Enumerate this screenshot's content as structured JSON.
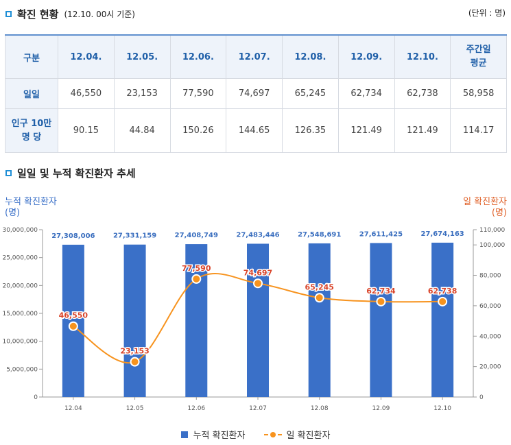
{
  "section1": {
    "title": "확진 현황",
    "subtitle": "(12.10. 00시 기준)",
    "unit_note": "(단위 : 명)"
  },
  "table": {
    "headers": [
      "구분",
      "12.04.",
      "12.05.",
      "12.06.",
      "12.07.",
      "12.08.",
      "12.09.",
      "12.10.",
      "주간일\n평균"
    ],
    "rows": [
      {
        "label": "일일",
        "values": [
          "46,550",
          "23,153",
          "77,590",
          "74,697",
          "65,245",
          "62,734",
          "62,738",
          "58,958"
        ]
      },
      {
        "label": "인구 10만\n명 당",
        "values": [
          "90.15",
          "44.84",
          "150.26",
          "144.65",
          "126.35",
          "121.49",
          "121.49",
          "114.17"
        ]
      }
    ]
  },
  "section2": {
    "title": "일일 및 누적 확진환자 추세"
  },
  "colors": {
    "bar": "#3a70c8",
    "line": "#f7931e",
    "left_axis_title": "#3a70c8",
    "right_axis_title": "#e0622a",
    "bar_label": "#3b6fbf",
    "line_label": "#d9452b"
  },
  "chart_data": {
    "type": "bar",
    "categories": [
      "12.04",
      "12.05",
      "12.06",
      "12.07",
      "12.08",
      "12.09",
      "12.10"
    ],
    "series": [
      {
        "name": "누적 확진환자",
        "type": "bar",
        "axis": "left",
        "values": [
          27308006,
          27331159,
          27408749,
          27483446,
          27548691,
          27611425,
          27674163
        ],
        "labels": [
          "27,308,006",
          "27,331,159",
          "27,408,749",
          "27,483,446",
          "27,548,691",
          "27,611,425",
          "27,674,163"
        ]
      },
      {
        "name": "일 확진환자",
        "type": "line",
        "axis": "right",
        "smooth": true,
        "values": [
          46550,
          23153,
          77590,
          74697,
          65245,
          62734,
          62738
        ],
        "labels": [
          "46,550",
          "23,153",
          "77,590",
          "74,697",
          "65,245",
          "62,734",
          "62,738"
        ]
      }
    ],
    "left_axis": {
      "title": "누적 확진환자",
      "unit": "(명)",
      "ylim": [
        0,
        30000000
      ],
      "ticks": [
        "0",
        "5,000,000",
        "10,000,000",
        "15,000,000",
        "20,000,000",
        "25,000,000",
        "30,000,000"
      ]
    },
    "right_axis": {
      "title": "일 확진환자",
      "unit": "(명)",
      "ylim": [
        0,
        110000
      ],
      "ticks": [
        "0",
        "20,000",
        "40,000",
        "60,000",
        "80,000",
        "100,000",
        "110,000"
      ]
    },
    "grid": false,
    "legend": "bottom-center"
  }
}
